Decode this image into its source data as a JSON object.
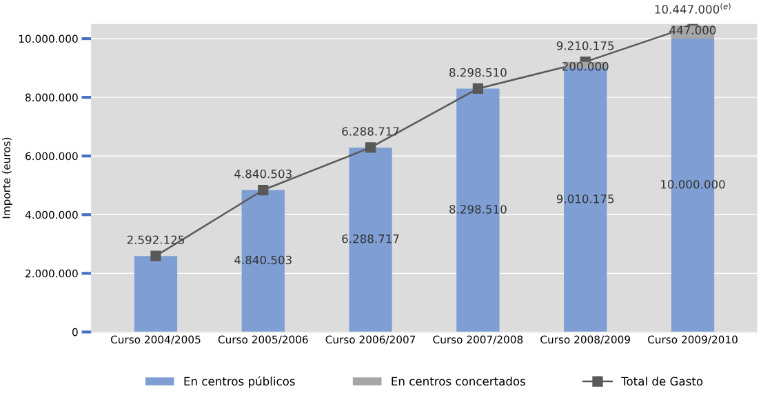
{
  "chart_data": {
    "type": "bar",
    "stacked": true,
    "ylabel": "Importe (euros)",
    "categories": [
      "Curso 2004/2005",
      "Curso 2005/2006",
      "Curso 2006/2007",
      "Curso 2007/2008",
      "Curso 2008/2009",
      "Curso 2009/2010"
    ],
    "series": [
      {
        "name": "En centros públicos",
        "color": "#7f9fd4",
        "values": [
          2592125,
          4840503,
          6288717,
          8298510,
          9010175,
          10000000
        ],
        "value_labels": [
          null,
          "4.840.503",
          "6.288.717",
          "8.298.510",
          "9.010.175",
          "10.000.000"
        ]
      },
      {
        "name": "En centros concertados",
        "color": "#a6a6a6",
        "values": [
          0,
          0,
          0,
          0,
          200000,
          447000
        ],
        "value_labels": [
          null,
          null,
          null,
          null,
          "200.000",
          "447.000"
        ]
      },
      {
        "name": "Total de Gasto",
        "type": "line",
        "color": "#595959",
        "marker": "square",
        "values": [
          2592125,
          4840503,
          6288717,
          8298510,
          9210175,
          10447000
        ],
        "value_labels": [
          "2.592.125",
          "4.840.503",
          "6.288.717",
          "8.298.510",
          "9.210.175",
          "10.447.000$^{(e)}$"
        ]
      }
    ],
    "ylim": [
      0,
      10500000
    ],
    "yticks": [
      {
        "value": 0,
        "label": "0"
      },
      {
        "value": 2000000,
        "label": "2.000.000"
      },
      {
        "value": 4000000,
        "label": "4.000.000"
      },
      {
        "value": 6000000,
        "label": "6.000.000"
      },
      {
        "value": 8000000,
        "label": "8.000.000"
      },
      {
        "value": 10000000,
        "label": "10.000.000"
      }
    ],
    "grid": "y",
    "legend": "bottom"
  }
}
